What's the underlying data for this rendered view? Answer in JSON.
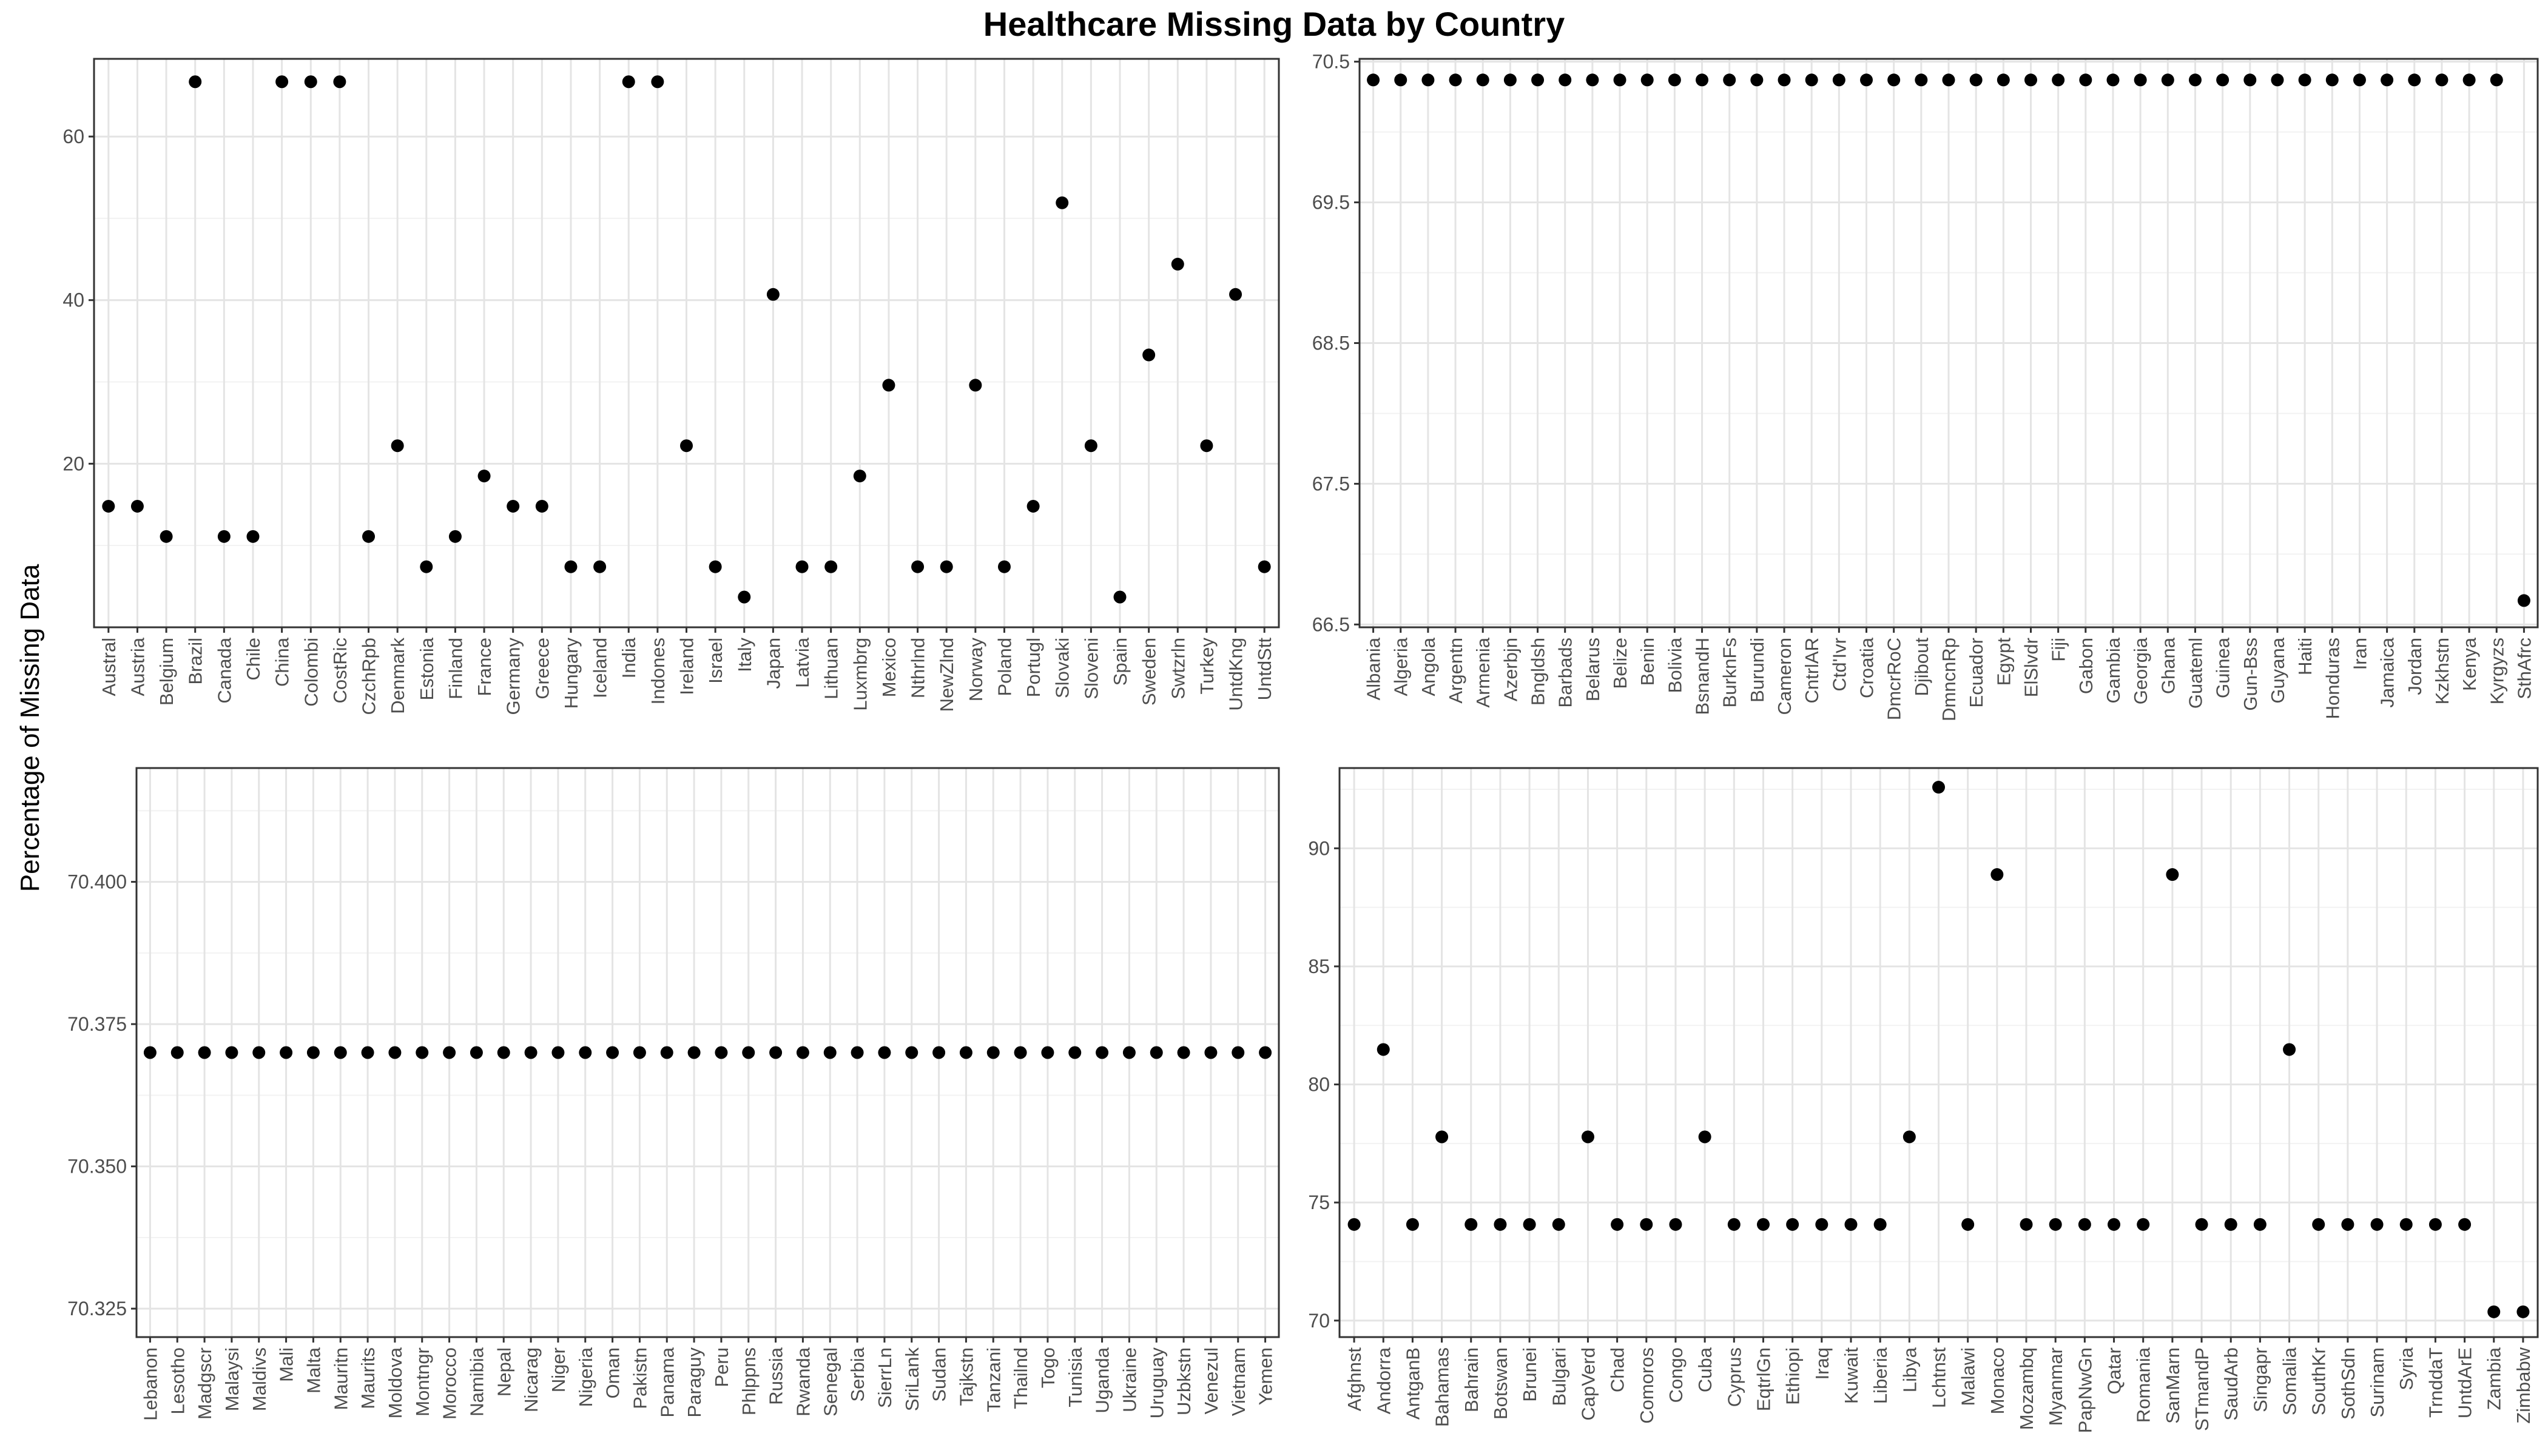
{
  "title": "Healthcare Missing Data by Country",
  "ylabel": "Percentage of Missing Data",
  "chart_data": [
    {
      "type": "scatter",
      "ylim": [
        0,
        69.5
      ],
      "yticks": [
        20,
        40,
        60
      ],
      "y_tick_labels": [
        "20",
        "40",
        "60"
      ],
      "grid": true,
      "categories": [
        "Austral",
        "Austria",
        "Belgium",
        "Brazil",
        "Canada",
        "Chile",
        "China",
        "Colombi",
        "CostRic",
        "CzchRpb",
        "Denmark",
        "Estonia",
        "Finland",
        "France",
        "Germany",
        "Greece",
        "Hungary",
        "Iceland",
        "India",
        "Indones",
        "Ireland",
        "Israel",
        "Italy",
        "Japan",
        "Latvia",
        "Lithuan",
        "Luxmbrg",
        "Mexico",
        "Nthrlnd",
        "NewZlnd",
        "Norway",
        "Poland",
        "Portugl",
        "Slovaki",
        "Sloveni",
        "Spain",
        "Sweden",
        "Swtzrln",
        "Turkey",
        "UntdKng",
        "UntdStt"
      ],
      "values": [
        14.8,
        14.8,
        11.1,
        66.7,
        11.1,
        11.1,
        66.7,
        66.7,
        66.7,
        11.1,
        22.2,
        7.4,
        11.1,
        18.5,
        14.8,
        14.8,
        7.4,
        7.4,
        66.7,
        66.7,
        22.2,
        7.4,
        3.7,
        40.7,
        7.4,
        7.4,
        18.5,
        29.6,
        7.4,
        7.4,
        29.6,
        7.4,
        14.8,
        51.9,
        22.2,
        3.7,
        33.3,
        44.4,
        22.2,
        40.7,
        7.4
      ]
    },
    {
      "type": "scatter",
      "ylim": [
        66.48,
        70.52
      ],
      "yticks": [
        66.5,
        67.5,
        68.5,
        69.5,
        70.5
      ],
      "y_tick_labels": [
        "66.5",
        "67.5",
        "68.5",
        "69.5",
        "70.5"
      ],
      "grid": true,
      "categories": [
        "Albania",
        "Algeria",
        "Angola",
        "Argentn",
        "Armenia",
        "Azerbjn",
        "Bngldsh",
        "Barbads",
        "Belarus",
        "Belize",
        "Benin",
        "Bolivia",
        "BsnandH",
        "BurknFs",
        "Burundi",
        "Cameron",
        "CntrlAR",
        "Ctd'Ivr",
        "Croatia",
        "DmcrRoC",
        "Djibout",
        "DmncnRp",
        "Ecuador",
        "Egypt",
        "ElSlvdr",
        "Fiji",
        "Gabon",
        "Gambia",
        "Georgia",
        "Ghana",
        "Guateml",
        "Guinea",
        "Gun-Bss",
        "Guyana",
        "Haiti",
        "Honduras",
        "Iran",
        "Jamaica",
        "Jordan",
        "Kzkhstn",
        "Kenya",
        "Kyrgyzs",
        "SthAfrc"
      ],
      "values": [
        70.37,
        70.37,
        70.37,
        70.37,
        70.37,
        70.37,
        70.37,
        70.37,
        70.37,
        70.37,
        70.37,
        70.37,
        70.37,
        70.37,
        70.37,
        70.37,
        70.37,
        70.37,
        70.37,
        70.37,
        70.37,
        70.37,
        70.37,
        70.37,
        70.37,
        70.37,
        70.37,
        70.37,
        70.37,
        70.37,
        70.37,
        70.37,
        70.37,
        70.37,
        70.37,
        70.37,
        70.37,
        70.37,
        70.37,
        70.37,
        70.37,
        70.37,
        66.67
      ]
    },
    {
      "type": "scatter",
      "ylim": [
        70.32,
        70.42
      ],
      "yticks": [
        70.325,
        70.35,
        70.375,
        70.4
      ],
      "y_tick_labels": [
        "70.325",
        "70.350",
        "70.375",
        "70.400"
      ],
      "grid": true,
      "categories": [
        "Lebanon",
        "Lesotho",
        "Madgscr",
        "Malaysi",
        "Maldivs",
        "Mali",
        "Malta",
        "Mauritn",
        "Maurits",
        "Moldova",
        "Montngr",
        "Morocco",
        "Namibia",
        "Nepal",
        "Nicarag",
        "Niger",
        "Nigeria",
        "Oman",
        "Pakistn",
        "Panama",
        "Paraguy",
        "Peru",
        "Phlppns",
        "Russia",
        "Rwanda",
        "Senegal",
        "Serbia",
        "SierrLn",
        "SriLank",
        "Sudan",
        "Tajkstn",
        "Tanzani",
        "Thailnd",
        "Togo",
        "Tunisia",
        "Uganda",
        "Ukraine",
        "Uruguay",
        "Uzbkstn",
        "Venezul",
        "Vietnam",
        "Yemen"
      ],
      "values": [
        70.37,
        70.37,
        70.37,
        70.37,
        70.37,
        70.37,
        70.37,
        70.37,
        70.37,
        70.37,
        70.37,
        70.37,
        70.37,
        70.37,
        70.37,
        70.37,
        70.37,
        70.37,
        70.37,
        70.37,
        70.37,
        70.37,
        70.37,
        70.37,
        70.37,
        70.37,
        70.37,
        70.37,
        70.37,
        70.37,
        70.37,
        70.37,
        70.37,
        70.37,
        70.37,
        70.37,
        70.37,
        70.37,
        70.37,
        70.37,
        70.37,
        70.37
      ]
    },
    {
      "type": "scatter",
      "ylim": [
        69.3,
        93.4
      ],
      "yticks": [
        70,
        75,
        80,
        85,
        90
      ],
      "y_tick_labels": [
        "70",
        "75",
        "80",
        "85",
        "90"
      ],
      "grid": true,
      "categories": [
        "Afghnst",
        "Andorra",
        "AntganB",
        "Bahamas",
        "Bahrain",
        "Botswan",
        "Brunei",
        "Bulgari",
        "CapVerd",
        "Chad",
        "Comoros",
        "Congo",
        "Cuba",
        "Cyprus",
        "EqtrlGn",
        "Ethiopi",
        "Iraq",
        "Kuwait",
        "Liberia",
        "Libya",
        "Lchtnst",
        "Malawi",
        "Monaco",
        "Mozambq",
        "Myanmar",
        "PapNwGn",
        "Qatar",
        "Romania",
        "SanMarn",
        "STmandP",
        "SaudArb",
        "Singapr",
        "Somalia",
        "SouthKr",
        "SothSdn",
        "Surinam",
        "Syria",
        "TrnddaT",
        "UntdArE",
        "Zambia",
        "Zimbabw"
      ],
      "values": [
        74.07,
        81.48,
        74.07,
        77.78,
        74.07,
        74.07,
        74.07,
        74.07,
        77.78,
        74.07,
        74.07,
        74.07,
        77.78,
        74.07,
        74.07,
        74.07,
        74.07,
        74.07,
        74.07,
        77.78,
        92.59,
        74.07,
        88.89,
        74.07,
        74.07,
        74.07,
        74.07,
        74.07,
        88.89,
        74.07,
        74.07,
        74.07,
        81.48,
        74.07,
        74.07,
        74.07,
        74.07,
        74.07,
        74.07,
        70.37,
        70.37
      ]
    }
  ]
}
